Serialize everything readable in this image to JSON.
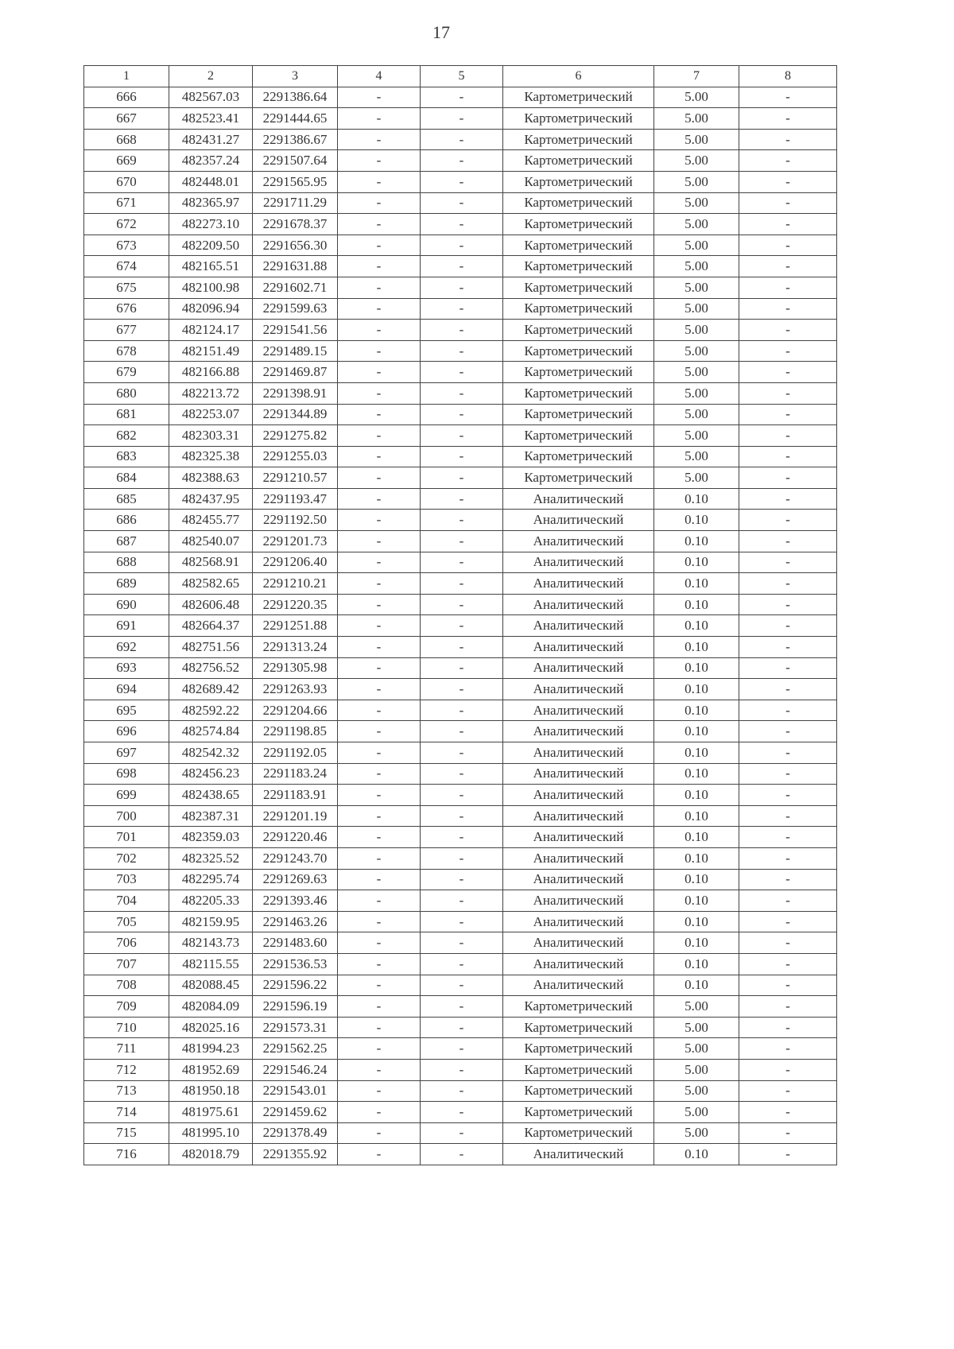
{
  "page_number": "17",
  "table": {
    "headers": [
      "1",
      "2",
      "3",
      "4",
      "5",
      "6",
      "7",
      "8"
    ],
    "rows": [
      [
        "666",
        "482567.03",
        "2291386.64",
        "-",
        "-",
        "Картометрический",
        "5.00",
        "-"
      ],
      [
        "667",
        "482523.41",
        "2291444.65",
        "-",
        "-",
        "Картометрический",
        "5.00",
        "-"
      ],
      [
        "668",
        "482431.27",
        "2291386.67",
        "-",
        "-",
        "Картометрический",
        "5.00",
        "-"
      ],
      [
        "669",
        "482357.24",
        "2291507.64",
        "-",
        "-",
        "Картометрический",
        "5.00",
        "-"
      ],
      [
        "670",
        "482448.01",
        "2291565.95",
        "-",
        "-",
        "Картометрический",
        "5.00",
        "-"
      ],
      [
        "671",
        "482365.97",
        "2291711.29",
        "-",
        "-",
        "Картометрический",
        "5.00",
        "-"
      ],
      [
        "672",
        "482273.10",
        "2291678.37",
        "-",
        "-",
        "Картометрический",
        "5.00",
        "-"
      ],
      [
        "673",
        "482209.50",
        "2291656.30",
        "-",
        "-",
        "Картометрический",
        "5.00",
        "-"
      ],
      [
        "674",
        "482165.51",
        "2291631.88",
        "-",
        "-",
        "Картометрический",
        "5.00",
        "-"
      ],
      [
        "675",
        "482100.98",
        "2291602.71",
        "-",
        "-",
        "Картометрический",
        "5.00",
        "-"
      ],
      [
        "676",
        "482096.94",
        "2291599.63",
        "-",
        "-",
        "Картометрический",
        "5.00",
        "-"
      ],
      [
        "677",
        "482124.17",
        "2291541.56",
        "-",
        "-",
        "Картометрический",
        "5.00",
        "-"
      ],
      [
        "678",
        "482151.49",
        "2291489.15",
        "-",
        "-",
        "Картометрический",
        "5.00",
        "-"
      ],
      [
        "679",
        "482166.88",
        "2291469.87",
        "-",
        "-",
        "Картометрический",
        "5.00",
        "-"
      ],
      [
        "680",
        "482213.72",
        "2291398.91",
        "-",
        "-",
        "Картометрический",
        "5.00",
        "-"
      ],
      [
        "681",
        "482253.07",
        "2291344.89",
        "-",
        "-",
        "Картометрический",
        "5.00",
        "-"
      ],
      [
        "682",
        "482303.31",
        "2291275.82",
        "-",
        "-",
        "Картометрический",
        "5.00",
        "-"
      ],
      [
        "683",
        "482325.38",
        "2291255.03",
        "-",
        "-",
        "Картометрический",
        "5.00",
        "-"
      ],
      [
        "684",
        "482388.63",
        "2291210.57",
        "-",
        "-",
        "Картометрический",
        "5.00",
        "-"
      ],
      [
        "685",
        "482437.95",
        "2291193.47",
        "-",
        "-",
        "Аналитический",
        "0.10",
        "-"
      ],
      [
        "686",
        "482455.77",
        "2291192.50",
        "-",
        "-",
        "Аналитический",
        "0.10",
        "-"
      ],
      [
        "687",
        "482540.07",
        "2291201.73",
        "-",
        "-",
        "Аналитический",
        "0.10",
        "-"
      ],
      [
        "688",
        "482568.91",
        "2291206.40",
        "-",
        "-",
        "Аналитический",
        "0.10",
        "-"
      ],
      [
        "689",
        "482582.65",
        "2291210.21",
        "-",
        "-",
        "Аналитический",
        "0.10",
        "-"
      ],
      [
        "690",
        "482606.48",
        "2291220.35",
        "-",
        "-",
        "Аналитический",
        "0.10",
        "-"
      ],
      [
        "691",
        "482664.37",
        "2291251.88",
        "-",
        "-",
        "Аналитический",
        "0.10",
        "-"
      ],
      [
        "692",
        "482751.56",
        "2291313.24",
        "-",
        "-",
        "Аналитический",
        "0.10",
        "-"
      ],
      [
        "693",
        "482756.52",
        "2291305.98",
        "-",
        "-",
        "Аналитический",
        "0.10",
        "-"
      ],
      [
        "694",
        "482689.42",
        "2291263.93",
        "-",
        "-",
        "Аналитический",
        "0.10",
        "-"
      ],
      [
        "695",
        "482592.22",
        "2291204.66",
        "-",
        "-",
        "Аналитический",
        "0.10",
        "-"
      ],
      [
        "696",
        "482574.84",
        "2291198.85",
        "-",
        "-",
        "Аналитический",
        "0.10",
        "-"
      ],
      [
        "697",
        "482542.32",
        "2291192.05",
        "-",
        "-",
        "Аналитический",
        "0.10",
        "-"
      ],
      [
        "698",
        "482456.23",
        "2291183.24",
        "-",
        "-",
        "Аналитический",
        "0.10",
        "-"
      ],
      [
        "699",
        "482438.65",
        "2291183.91",
        "-",
        "-",
        "Аналитический",
        "0.10",
        "-"
      ],
      [
        "700",
        "482387.31",
        "2291201.19",
        "-",
        "-",
        "Аналитический",
        "0.10",
        "-"
      ],
      [
        "701",
        "482359.03",
        "2291220.46",
        "-",
        "-",
        "Аналитический",
        "0.10",
        "-"
      ],
      [
        "702",
        "482325.52",
        "2291243.70",
        "-",
        "-",
        "Аналитический",
        "0.10",
        "-"
      ],
      [
        "703",
        "482295.74",
        "2291269.63",
        "-",
        "-",
        "Аналитический",
        "0.10",
        "-"
      ],
      [
        "704",
        "482205.33",
        "2291393.46",
        "-",
        "-",
        "Аналитический",
        "0.10",
        "-"
      ],
      [
        "705",
        "482159.95",
        "2291463.26",
        "-",
        "-",
        "Аналитический",
        "0.10",
        "-"
      ],
      [
        "706",
        "482143.73",
        "2291483.60",
        "-",
        "-",
        "Аналитический",
        "0.10",
        "-"
      ],
      [
        "707",
        "482115.55",
        "2291536.53",
        "-",
        "-",
        "Аналитический",
        "0.10",
        "-"
      ],
      [
        "708",
        "482088.45",
        "2291596.22",
        "-",
        "-",
        "Аналитический",
        "0.10",
        "-"
      ],
      [
        "709",
        "482084.09",
        "2291596.19",
        "-",
        "-",
        "Картометрический",
        "5.00",
        "-"
      ],
      [
        "710",
        "482025.16",
        "2291573.31",
        "-",
        "-",
        "Картометрический",
        "5.00",
        "-"
      ],
      [
        "711",
        "481994.23",
        "2291562.25",
        "-",
        "-",
        "Картометрический",
        "5.00",
        "-"
      ],
      [
        "712",
        "481952.69",
        "2291546.24",
        "-",
        "-",
        "Картометрический",
        "5.00",
        "-"
      ],
      [
        "713",
        "481950.18",
        "2291543.01",
        "-",
        "-",
        "Картометрический",
        "5.00",
        "-"
      ],
      [
        "714",
        "481975.61",
        "2291459.62",
        "-",
        "-",
        "Картометрический",
        "5.00",
        "-"
      ],
      [
        "715",
        "481995.10",
        "2291378.49",
        "-",
        "-",
        "Картометрический",
        "5.00",
        "-"
      ],
      [
        "716",
        "482018.79",
        "2291355.92",
        "-",
        "-",
        "Аналитический",
        "0.10",
        "-"
      ]
    ]
  }
}
